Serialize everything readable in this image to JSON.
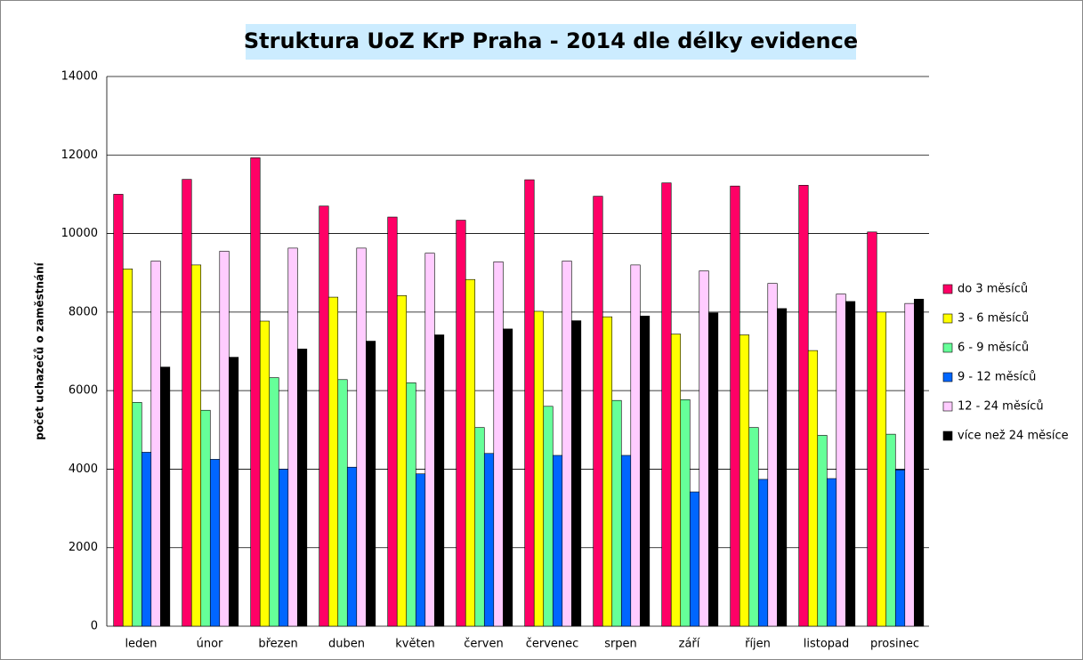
{
  "chart_data": {
    "type": "bar",
    "title": "Struktura UoZ KrP Praha - 2014 dle délky evidence",
    "y_label": "počet uchazečů o zaměstnání",
    "categories": [
      "leden",
      "únor",
      "březen",
      "duben",
      "květen",
      "červen",
      "červenec",
      "srpen",
      "září",
      "říjen",
      "listopad",
      "prosinec"
    ],
    "series": [
      {
        "name": "do 3 měsíců",
        "color": "#ff0066",
        "values": [
          11000,
          11380,
          11930,
          10700,
          10420,
          10340,
          11370,
          10950,
          11290,
          11210,
          11230,
          10040
        ]
      },
      {
        "name": "3 - 6 měsíců",
        "color": "#ffff00",
        "values": [
          9100,
          9200,
          7770,
          8380,
          8420,
          8830,
          8020,
          7880,
          7440,
          7420,
          7020,
          8000
        ]
      },
      {
        "name": "6 - 9 měsíců",
        "color": "#66ff99",
        "values": [
          5700,
          5500,
          6330,
          6280,
          6200,
          5060,
          5600,
          5750,
          5770,
          5060,
          4860,
          4890
        ]
      },
      {
        "name": "9 - 12 měsíců",
        "color": "#0066ff",
        "values": [
          4430,
          4250,
          4000,
          4050,
          3880,
          4400,
          4350,
          4350,
          3420,
          3740,
          3760,
          3980
        ]
      },
      {
        "name": "12 - 24 měsíců",
        "color": "#ffccff",
        "values": [
          9300,
          9550,
          9630,
          9630,
          9500,
          9280,
          9300,
          9200,
          9050,
          8730,
          8460,
          8220
        ]
      },
      {
        "name": "více než 24 měsíce",
        "color": "#000000",
        "values": [
          6600,
          6850,
          7060,
          7260,
          7420,
          7570,
          7780,
          7900,
          7980,
          8090,
          8270,
          8330
        ]
      }
    ],
    "ylim": [
      0,
      14000
    ],
    "yticks": [
      0,
      2000,
      4000,
      6000,
      8000,
      10000,
      12000,
      14000
    ],
    "grid": true,
    "legend": "right"
  }
}
